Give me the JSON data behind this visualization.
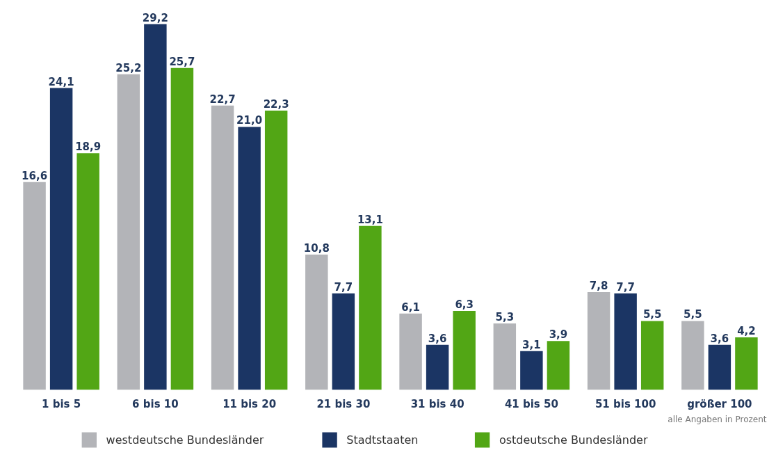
{
  "chart_data": {
    "type": "bar",
    "categories": [
      "1 bis 5",
      "6 bis 10",
      "11 bis 20",
      "21 bis 30",
      "31 bis 40",
      "41 bis 50",
      "51 bis 100",
      "größer 100"
    ],
    "series": [
      {
        "name": "westdeutsche Bundesländer",
        "color": "#b3b4b8",
        "values": [
          16.6,
          25.2,
          22.7,
          10.8,
          6.1,
          5.3,
          7.8,
          5.5
        ],
        "value_labels": [
          "16,6",
          "25,2",
          "22,7",
          "10,8",
          "6,1",
          "5,3",
          "7,8",
          "5,5"
        ]
      },
      {
        "name": "Stadtstaaten",
        "color": "#1b3564",
        "values": [
          24.1,
          29.2,
          21.0,
          7.7,
          3.6,
          3.1,
          7.7,
          3.6
        ],
        "value_labels": [
          "24,1",
          "29,2",
          "21,0",
          "7,7",
          "3,6",
          "3,1",
          "7,7",
          "3,6"
        ]
      },
      {
        "name": "ostdeutsche Bundesländer",
        "color": "#52a615",
        "values": [
          18.9,
          25.7,
          22.3,
          13.1,
          6.3,
          3.9,
          5.5,
          4.2
        ],
        "value_labels": [
          "18,9",
          "25,7",
          "22,3",
          "13,1",
          "6,3",
          "3,9",
          "5,5",
          "4,2"
        ]
      }
    ],
    "tick_labels": "x",
    "grid": false,
    "legend": "bottom",
    "annotations": [
      "alle Angaben in Prozent"
    ]
  }
}
